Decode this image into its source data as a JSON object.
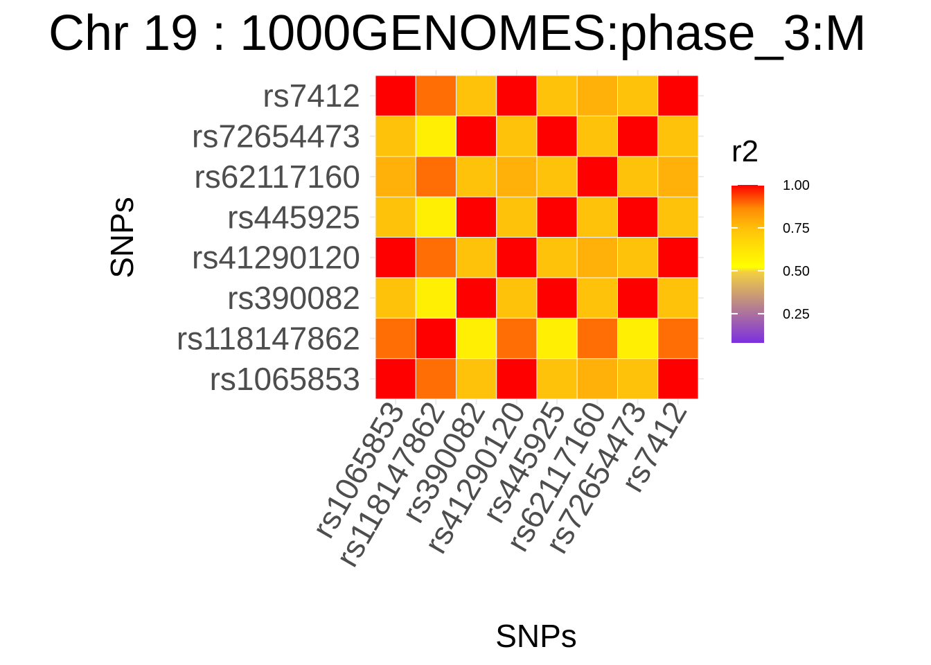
{
  "chart_data": {
    "type": "heatmap",
    "title": "Chr 19 : 1000GENOMES:phase_3:M",
    "xlabel": "SNPs",
    "ylabel": "SNPs",
    "x_categories": [
      "rs1065853",
      "rs118147862",
      "rs390082",
      "rs41290120",
      "rs445925",
      "rs62117160",
      "rs72654473",
      "rs7412"
    ],
    "y_categories": [
      "rs1065853",
      "rs118147862",
      "rs390082",
      "rs41290120",
      "rs445925",
      "rs62117160",
      "rs72654473",
      "rs7412"
    ],
    "values": [
      [
        1.0,
        0.8,
        0.7,
        1.0,
        0.7,
        0.72,
        0.7,
        1.0
      ],
      [
        0.8,
        1.0,
        0.55,
        0.8,
        0.55,
        0.8,
        0.55,
        0.8
      ],
      [
        0.7,
        0.55,
        1.0,
        0.7,
        1.0,
        0.7,
        1.0,
        0.7
      ],
      [
        1.0,
        0.8,
        0.7,
        1.0,
        0.7,
        0.72,
        0.7,
        1.0
      ],
      [
        0.7,
        0.55,
        1.0,
        0.7,
        1.0,
        0.7,
        1.0,
        0.7
      ],
      [
        0.72,
        0.8,
        0.7,
        0.72,
        0.7,
        1.0,
        0.7,
        0.72
      ],
      [
        0.7,
        0.55,
        1.0,
        0.7,
        1.0,
        0.7,
        1.0,
        0.7
      ],
      [
        1.0,
        0.8,
        0.7,
        1.0,
        0.7,
        0.72,
        0.7,
        1.0
      ]
    ],
    "grid": true,
    "legend": {
      "title": "r2",
      "position": "right",
      "ticks": [
        1.0,
        0.75,
        0.5,
        0.25
      ],
      "tick_labels": [
        "1.00",
        "0.75",
        "0.50",
        "0.25"
      ],
      "range": [
        0.08,
        1.0
      ],
      "colors": {
        "low": "#7b2fe0",
        "mid_low": "#d9a86b",
        "mid": "#ffff00",
        "mid_high": "#ffc20a",
        "high": "#ff0000"
      }
    }
  }
}
